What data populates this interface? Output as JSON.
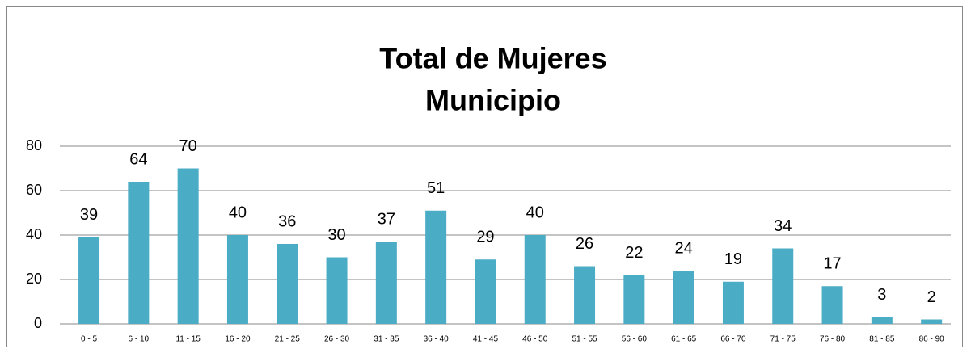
{
  "chart_data": {
    "type": "bar",
    "title": [
      "Total de Mujeres",
      "Municipio"
    ],
    "categories": [
      "0 - 5",
      "6 - 10",
      "11 - 15",
      "16 - 20",
      "21 - 25",
      "26 - 30",
      "31 - 35",
      "36 - 40",
      "41 - 45",
      "46 - 50",
      "51 - 55",
      "56 - 60",
      "61 - 65",
      "66 - 70",
      "71 - 75",
      "76 - 80",
      "81 - 85",
      "86 - 90"
    ],
    "values": [
      39,
      64,
      70,
      40,
      36,
      30,
      37,
      51,
      29,
      40,
      26,
      22,
      24,
      19,
      34,
      17,
      3,
      2
    ],
    "color": "#4bacc6",
    "ylim": [
      0,
      80
    ],
    "yticks": [
      0,
      20,
      40,
      60,
      80
    ],
    "grid": true
  }
}
